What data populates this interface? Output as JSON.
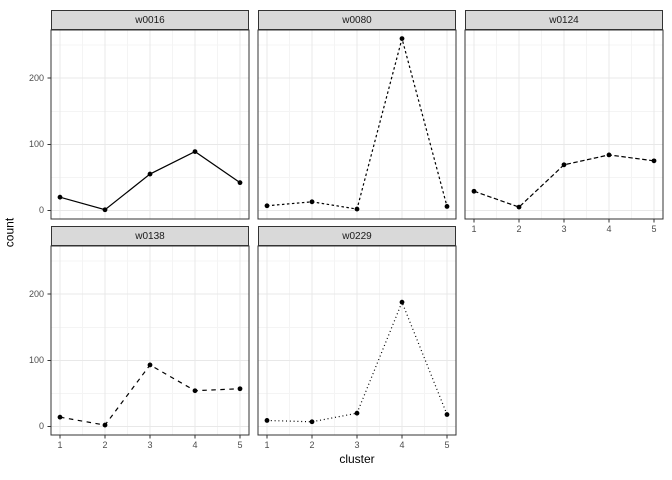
{
  "chart_data": {
    "type": "line",
    "title": "",
    "xlabel": "cluster",
    "ylabel": "count",
    "x": [
      1,
      2,
      3,
      4,
      5
    ],
    "xticks": [
      "1",
      "2",
      "3",
      "4",
      "5"
    ],
    "yticks": [
      "0",
      "100",
      "200"
    ],
    "ytick_values": [
      0,
      100,
      200
    ],
    "xlim": [
      0.8,
      5.2
    ],
    "ylim": [
      -13,
      273
    ],
    "grid": "major and minor, light gray on white (theme_bw style)",
    "legend_position": "none",
    "facet_layout": "2 rows x 3 cols, last cell empty",
    "facets": [
      {
        "label": "w0016",
        "linetype": "solid",
        "values": [
          20,
          1,
          55,
          89,
          42
        ]
      },
      {
        "label": "w0080",
        "linetype": "short-dash",
        "values": [
          7,
          13,
          2,
          260,
          6
        ]
      },
      {
        "label": "w0124",
        "linetype": "medium-dash",
        "values": [
          29,
          5,
          69,
          84,
          75
        ]
      },
      {
        "label": "w0138",
        "linetype": "long-dash",
        "values": [
          14,
          2,
          93,
          54,
          57
        ]
      },
      {
        "label": "w0229",
        "linetype": "dotted",
        "values": [
          9,
          7,
          20,
          188,
          18
        ]
      }
    ],
    "colors": {
      "background": "#FFFFFF",
      "panel_background": "#FFFFFF",
      "panel_border": "#333333",
      "strip_fill": "#D9D9D9",
      "strip_border": "#333333",
      "strip_text": "#1A1A1A",
      "grid_major": "#E8E8E8",
      "grid_minor": "#F4F4F4",
      "line": "#000000",
      "point": "#000000",
      "tick_mark": "#333333",
      "tick_text": "#4D4D4D",
      "axis_title_text": "#000000"
    }
  }
}
